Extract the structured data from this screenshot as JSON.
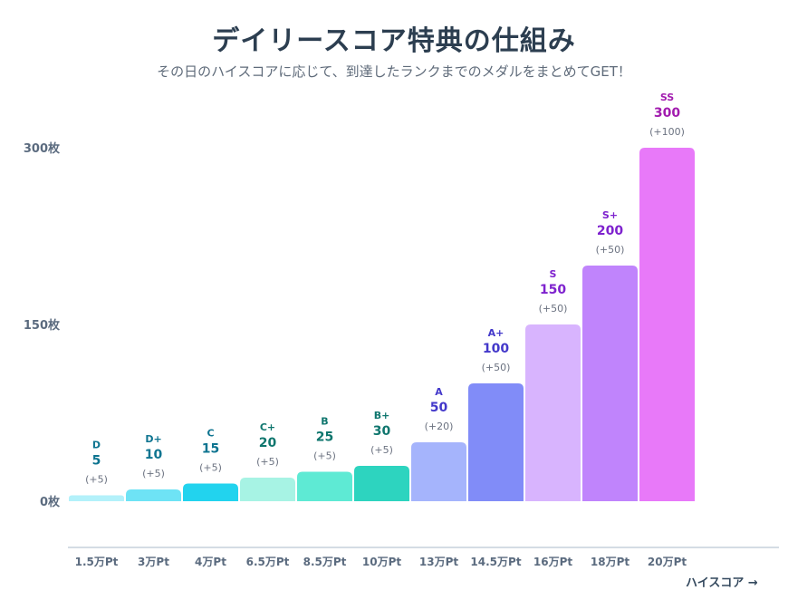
{
  "title": "デイリースコア特典の仕組み",
  "subtitle": "その日のハイスコアに応じて、到達したランクまでのメダルをまとめてGET！",
  "chart_data": {
    "type": "bar",
    "title": "デイリースコア特典の仕組み",
    "xlabel": "ハイスコア →",
    "ylabel": "",
    "ylim": [
      0,
      300
    ],
    "y_ticks": [
      {
        "value": 0,
        "label": "0枚"
      },
      {
        "value": 150,
        "label": "150枚"
      },
      {
        "value": 300,
        "label": "300枚"
      }
    ],
    "x_tick_labels": [
      "1.5万Pt",
      "3万Pt",
      "4万Pt",
      "6.5万Pt",
      "8.5万Pt",
      "10万Pt",
      "13万Pt",
      "14.5万Pt",
      "16万Pt",
      "18万Pt",
      "20万Pt"
    ],
    "categories": [
      "D",
      "D+",
      "C",
      "C+",
      "B",
      "B+",
      "A",
      "A+",
      "S",
      "S+",
      "SS"
    ],
    "values": [
      5,
      10,
      15,
      20,
      25,
      30,
      50,
      100,
      150,
      200,
      300
    ],
    "increments": [
      "(+5)",
      "(+5)",
      "(+5)",
      "(+5)",
      "(+5)",
      "(+5)",
      "(+20)",
      "(+50)",
      "(+50)",
      "(+50)",
      "(+100)"
    ],
    "bar_colors": [
      "#b3f1fa",
      "#6ee3f5",
      "#22d3ee",
      "#a7f3e4",
      "#5eead4",
      "#2dd4bf",
      "#a5b4fc",
      "#818cf8",
      "#d8b4fe",
      "#c084fc",
      "#e879f9"
    ],
    "text_colors": [
      "#0e7490",
      "#0e7490",
      "#0e7490",
      "#0f766e",
      "#0f766e",
      "#0f766e",
      "#4338ca",
      "#4338ca",
      "#7e22ce",
      "#7e22ce",
      "#a21caf"
    ]
  }
}
